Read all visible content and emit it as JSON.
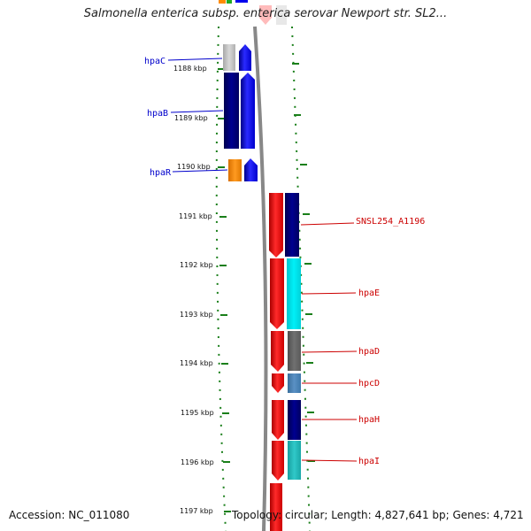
{
  "title": "Salmonella enterica subsp. enterica serovar Newport str. SL2...",
  "accession": "Accession: NC_011080",
  "topology": "Topology: circular; Length: 4,827,641 bp; Genes: 4,721",
  "ticks": [
    "1188 kbp",
    "1189 kbp",
    "1190 kbp",
    "1191 kbp",
    "1192 kbp",
    "1193 kbp",
    "1194 kbp",
    "1195 kbp",
    "1196 kbp",
    "1197 kbp"
  ],
  "genes_left": [
    {
      "label": "hpaC",
      "color": "#0000cc"
    },
    {
      "label": "hpaB",
      "color": "#0000cc"
    },
    {
      "label": "hpaR",
      "color": "#0000cc"
    }
  ],
  "genes_right": [
    {
      "label": "SNSL254_A1196",
      "color": "#cc0000"
    },
    {
      "label": "hpaE",
      "color": "#cc0000"
    },
    {
      "label": "hpaD",
      "color": "#cc0000"
    },
    {
      "label": "hpcD",
      "color": "#cc0000"
    },
    {
      "label": "hpaH",
      "color": "#cc0000"
    },
    {
      "label": "hpaI",
      "color": "#cc0000"
    }
  ],
  "colors": {
    "forward": "#ff0000",
    "reverse": "#0000ee",
    "tick": "#1a7f1a",
    "backbone": "#888888",
    "cog_navy": "#000080",
    "cog_cyan": "#00e5ee",
    "cog_gray": "#666666",
    "cog_steel": "#4682b4",
    "cog_teal": "#20b2aa",
    "cog_orange": "#ff8c00",
    "cog_light": "#c8c8c8"
  }
}
